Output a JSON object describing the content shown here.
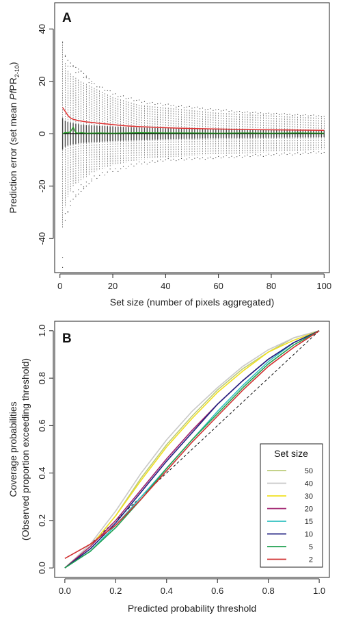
{
  "chart_data": [
    {
      "type": "box",
      "panel_label": "A",
      "xlabel": "Set size (number of pixels aggregated)",
      "ylabel_prefix": "Prediction error (set mean ",
      "ylabel_italic": "Pf",
      "ylabel_mid": "PR",
      "ylabel_sub": "2-10",
      "ylabel_suffix": ")",
      "xlim": [
        -2,
        102
      ],
      "ylim": [
        -53,
        50
      ],
      "x_ticks": [
        0,
        20,
        40,
        60,
        80,
        100
      ],
      "y_ticks": [
        -40,
        -20,
        0,
        20,
        40
      ],
      "colors": {
        "mean_error": "#e03030",
        "median_error": "#2ca02c",
        "zero_line": "#111111",
        "box": "#444444"
      },
      "zero_line": 0,
      "spread": {
        "x": [
          1,
          2,
          3,
          5,
          8,
          12,
          20,
          30,
          40,
          50,
          60,
          70,
          80,
          90,
          100
        ],
        "whisker_hi": [
          35,
          27,
          24,
          22,
          20,
          18,
          14,
          11,
          10,
          9,
          8,
          7.5,
          7,
          6.5,
          6
        ],
        "whisker_lo": [
          -36,
          -28,
          -24,
          -20,
          -18,
          -15,
          -12,
          -10,
          -9,
          -8.5,
          -8,
          -7.5,
          -7,
          -6.5,
          -6
        ],
        "q_hi": [
          6,
          5,
          4.5,
          4,
          3.5,
          3.2,
          2.8,
          2.4,
          2.1,
          1.9,
          1.7,
          1.6,
          1.5,
          1.4,
          1.3
        ],
        "q_lo": [
          -6,
          -5,
          -4.5,
          -4,
          -3.5,
          -3.2,
          -2.8,
          -2.4,
          -2.1,
          -1.9,
          -1.7,
          -1.6,
          -1.5,
          -1.4,
          -1.3
        ],
        "outlier_hi": [
          35,
          30,
          28,
          26,
          24,
          20,
          16,
          13,
          11.5,
          10.5,
          9.5,
          8.5,
          8,
          7.5,
          7
        ],
        "outlier_lo": [
          -51,
          -33,
          -30,
          -25,
          -22,
          -18,
          -15,
          -12,
          -10.5,
          -10,
          -9.5,
          -9,
          -8.5,
          -8,
          -7.5
        ]
      },
      "series": [
        {
          "name": "mean_error",
          "x": [
            1,
            2,
            3,
            4,
            5,
            7,
            10,
            15,
            20,
            25,
            30,
            40,
            50,
            60,
            70,
            80,
            90,
            100
          ],
          "values": [
            10,
            8.5,
            7,
            6,
            5.5,
            5,
            4.5,
            4,
            3.5,
            3,
            2.7,
            2.3,
            2,
            1.8,
            1.6,
            1.5,
            1.4,
            1.3
          ]
        },
        {
          "name": "median_error",
          "x": [
            1,
            2,
            3,
            4,
            5,
            6,
            7,
            8,
            10,
            15,
            20,
            30,
            40,
            50,
            60,
            70,
            80,
            90,
            100
          ],
          "values": [
            0,
            0.5,
            0.3,
            0.8,
            2.5,
            0.4,
            0.2,
            0.4,
            0.2,
            0.3,
            0.2,
            0.4,
            0.3,
            0.3,
            0.2,
            0.3,
            0.2,
            0.3,
            0.2
          ]
        }
      ]
    },
    {
      "type": "line",
      "panel_label": "B",
      "xlabel": "Predicted probability threshold",
      "ylabel_line1": "Coverage probabilities",
      "ylabel_line2": "(Observed proportion exceeding threshold)",
      "xlim": [
        -0.04,
        1.04
      ],
      "ylim": [
        -0.04,
        1.04
      ],
      "x_ticks": [
        "0.0",
        "0.2",
        "0.4",
        "0.6",
        "0.8",
        "1.0"
      ],
      "y_ticks": [
        "0.0",
        "0.2",
        "0.4",
        "0.6",
        "0.8",
        "1.0"
      ],
      "legend": {
        "title": "Set size",
        "placement": "bottom-right"
      },
      "x": [
        0,
        0.1,
        0.2,
        0.3,
        0.4,
        0.5,
        0.6,
        0.7,
        0.8,
        0.9,
        1.0
      ],
      "reference_line": {
        "x": [
          0,
          1
        ],
        "y": [
          0,
          1
        ],
        "style": "dashed"
      },
      "series": [
        {
          "name": "50",
          "color": "#bccb7a",
          "values": [
            0,
            0.09,
            0.22,
            0.38,
            0.52,
            0.64,
            0.75,
            0.84,
            0.91,
            0.97,
            1.0
          ]
        },
        {
          "name": "40",
          "color": "#c8c8c8",
          "values": [
            0,
            0.1,
            0.24,
            0.4,
            0.54,
            0.66,
            0.76,
            0.85,
            0.92,
            0.97,
            1.0
          ]
        },
        {
          "name": "30",
          "color": "#f0e020",
          "values": [
            0,
            0.09,
            0.22,
            0.37,
            0.51,
            0.63,
            0.74,
            0.83,
            0.91,
            0.96,
            1.0
          ]
        },
        {
          "name": "20",
          "color": "#a0206e",
          "values": [
            0,
            0.09,
            0.2,
            0.33,
            0.46,
            0.58,
            0.69,
            0.79,
            0.88,
            0.95,
            1.0
          ]
        },
        {
          "name": "15",
          "color": "#30c0c0",
          "values": [
            0,
            0.07,
            0.18,
            0.3,
            0.42,
            0.54,
            0.66,
            0.77,
            0.87,
            0.95,
            1.0
          ]
        },
        {
          "name": "10",
          "color": "#202080",
          "values": [
            0,
            0.08,
            0.19,
            0.32,
            0.45,
            0.57,
            0.69,
            0.79,
            0.88,
            0.95,
            1.0
          ]
        },
        {
          "name": "5",
          "color": "#20a050",
          "values": [
            0,
            0.07,
            0.17,
            0.29,
            0.42,
            0.54,
            0.65,
            0.76,
            0.86,
            0.94,
            1.0
          ]
        },
        {
          "name": "2",
          "color": "#d03030",
          "values": [
            0.04,
            0.1,
            0.18,
            0.29,
            0.41,
            0.53,
            0.64,
            0.75,
            0.85,
            0.93,
            1.0
          ]
        }
      ]
    }
  ]
}
